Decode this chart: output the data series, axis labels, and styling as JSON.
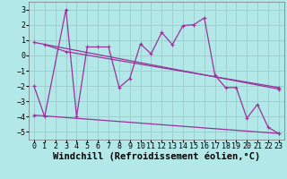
{
  "background_color": "#b2e8e8",
  "grid_color": "#9ecece",
  "line_color": "#993399",
  "xlabel": "Windchill (Refroidissement éolien,°C)",
  "xlim": [
    -0.5,
    23.5
  ],
  "ylim": [
    -5.5,
    3.5
  ],
  "yticks": [
    3,
    2,
    1,
    0,
    -1,
    -2,
    -3,
    -4,
    -5
  ],
  "xticks": [
    0,
    1,
    2,
    3,
    4,
    5,
    6,
    7,
    8,
    9,
    10,
    11,
    12,
    13,
    14,
    15,
    16,
    17,
    18,
    19,
    20,
    21,
    22,
    23
  ],
  "line1_x": [
    0,
    1,
    3,
    4,
    5,
    6,
    7,
    8,
    9,
    10,
    11,
    12,
    13,
    14,
    15,
    16,
    17,
    18,
    19,
    20,
    21,
    22,
    23
  ],
  "line1_y": [
    -2.0,
    -4.0,
    3.0,
    -4.0,
    0.55,
    0.55,
    0.55,
    -2.1,
    -1.5,
    0.75,
    0.1,
    1.5,
    0.7,
    1.95,
    2.0,
    2.45,
    -1.3,
    -2.1,
    -2.1,
    -4.1,
    -3.2,
    -4.7,
    -5.1
  ],
  "line2_x": [
    1,
    3,
    23
  ],
  "line2_y": [
    0.7,
    0.25,
    -2.1
  ],
  "line3_x": [
    0,
    23
  ],
  "line3_y": [
    -3.9,
    -5.1
  ],
  "line4_x": [
    0,
    23
  ],
  "line4_y": [
    0.85,
    -2.2
  ],
  "xlabel_fontsize": 7.5,
  "tick_fontsize": 6,
  "title_fontsize": 9
}
